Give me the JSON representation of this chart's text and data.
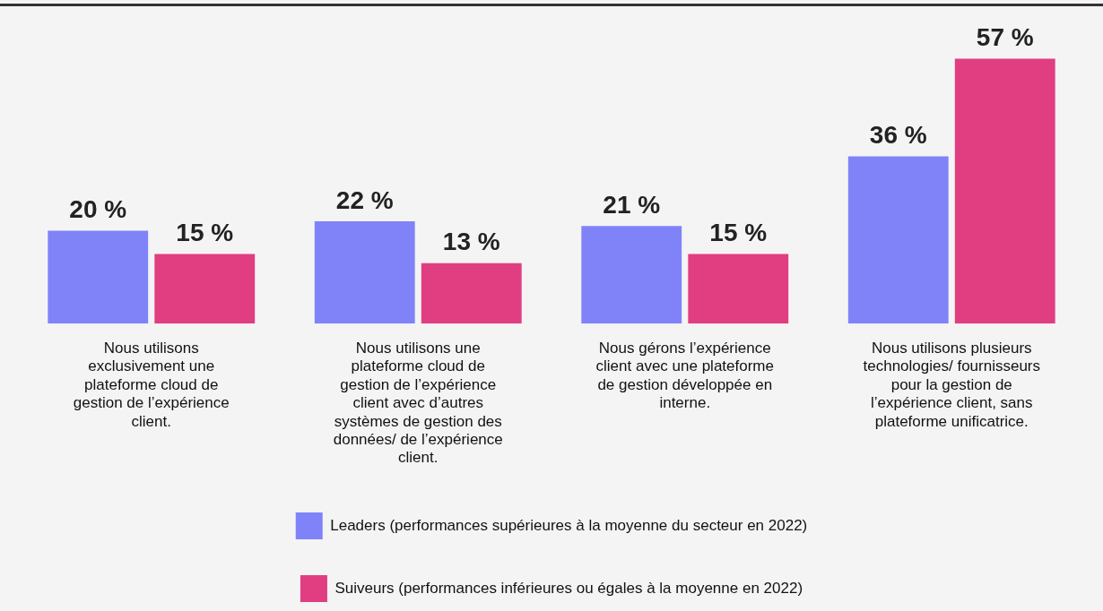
{
  "chart_data": {
    "type": "bar",
    "categories": [
      "Nous utilisons exclusivement une plateforme cloud de gestion de l’expérience client.",
      "Nous utilisons une plateforme cloud de gestion de l’expérience client avec d’autres systèmes de gestion des données/ de l’expérience client.",
      "Nous gérons l’expérience client avec une plateforme de gestion développée en interne.",
      "Nous utilisons plusieurs technologies/ fournisseurs pour la gestion de l’expérience client, sans plateforme unificatrice."
    ],
    "series": [
      {
        "name": "Leaders (performances supérieures à la moyenne du secteur en 2022)",
        "color": "#8083f8",
        "values": [
          20,
          22,
          21,
          36
        ],
        "value_labels": [
          "20 %",
          "22 %",
          "21 %",
          "36 %"
        ]
      },
      {
        "name": "Suiveurs (performances inférieures ou égales à la moyenne en 2022)",
        "color": "#e03e80",
        "values": [
          15,
          13,
          15,
          57
        ],
        "value_labels": [
          "15 %",
          "13 %",
          "15 %",
          "57 %"
        ]
      }
    ],
    "legend": "bottom",
    "grid": false
  }
}
